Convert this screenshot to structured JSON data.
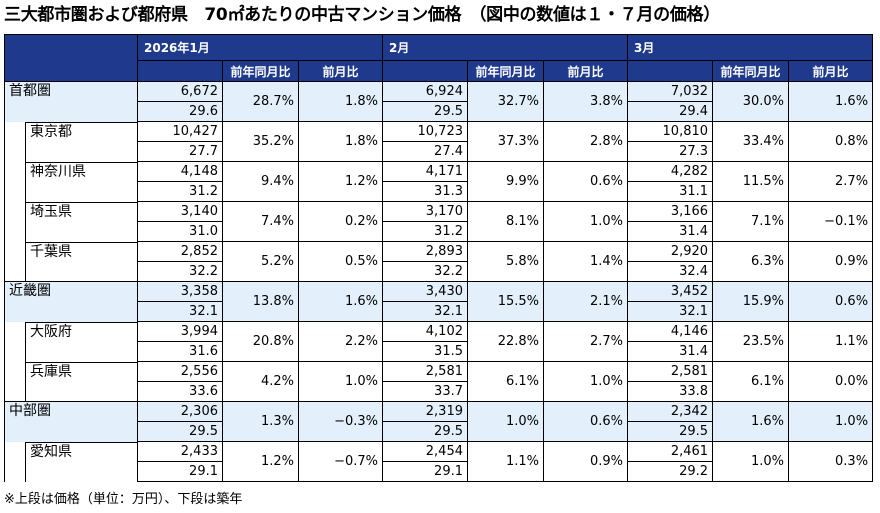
{
  "title": "三大都市圏および都府県　70㎡あたりの中古マンション価格　（図中の数値は１・７月の価格）",
  "header": {
    "months": [
      "2026年1月",
      "2月",
      "3月"
    ],
    "yoy_label": "前年同月比",
    "mom_label": "前月比"
  },
  "rows": [
    {
      "name": "首都圏",
      "type": "region",
      "cells": [
        {
          "price": "6,672",
          "age": "29.6",
          "yoy": "28.7%",
          "mom": "1.8%"
        },
        {
          "price": "6,924",
          "age": "29.5",
          "yoy": "32.7%",
          "mom": "3.8%"
        },
        {
          "price": "7,032",
          "age": "29.4",
          "yoy": "30.0%",
          "mom": "1.6%"
        }
      ]
    },
    {
      "name": "東京都",
      "type": "child",
      "cells": [
        {
          "price": "10,427",
          "age": "27.7",
          "yoy": "35.2%",
          "mom": "1.8%"
        },
        {
          "price": "10,723",
          "age": "27.4",
          "yoy": "37.3%",
          "mom": "2.8%"
        },
        {
          "price": "10,810",
          "age": "27.3",
          "yoy": "33.4%",
          "mom": "0.8%"
        }
      ]
    },
    {
      "name": "神奈川県",
      "type": "child",
      "cells": [
        {
          "price": "4,148",
          "age": "31.2",
          "yoy": "9.4%",
          "mom": "1.2%"
        },
        {
          "price": "4,171",
          "age": "31.3",
          "yoy": "9.9%",
          "mom": "0.6%"
        },
        {
          "price": "4,282",
          "age": "31.1",
          "yoy": "11.5%",
          "mom": "2.7%"
        }
      ]
    },
    {
      "name": "埼玉県",
      "type": "child",
      "cells": [
        {
          "price": "3,140",
          "age": "31.0",
          "yoy": "7.4%",
          "mom": "0.2%"
        },
        {
          "price": "3,170",
          "age": "31.2",
          "yoy": "8.1%",
          "mom": "1.0%"
        },
        {
          "price": "3,166",
          "age": "31.4",
          "yoy": "7.1%",
          "mom": "−0.1%"
        }
      ]
    },
    {
      "name": "千葉県",
      "type": "child",
      "cells": [
        {
          "price": "2,852",
          "age": "32.2",
          "yoy": "5.2%",
          "mom": "0.5%"
        },
        {
          "price": "2,893",
          "age": "32.2",
          "yoy": "5.8%",
          "mom": "1.4%"
        },
        {
          "price": "2,920",
          "age": "32.4",
          "yoy": "6.3%",
          "mom": "0.9%"
        }
      ]
    },
    {
      "name": "近畿圏",
      "type": "region",
      "cells": [
        {
          "price": "3,358",
          "age": "32.1",
          "yoy": "13.8%",
          "mom": "1.6%"
        },
        {
          "price": "3,430",
          "age": "32.1",
          "yoy": "15.5%",
          "mom": "2.1%"
        },
        {
          "price": "3,452",
          "age": "32.1",
          "yoy": "15.9%",
          "mom": "0.6%"
        }
      ]
    },
    {
      "name": "大阪府",
      "type": "child",
      "cells": [
        {
          "price": "3,994",
          "age": "31.6",
          "yoy": "20.8%",
          "mom": "2.2%"
        },
        {
          "price": "4,102",
          "age": "31.5",
          "yoy": "22.8%",
          "mom": "2.7%"
        },
        {
          "price": "4,146",
          "age": "31.4",
          "yoy": "23.5%",
          "mom": "1.1%"
        }
      ]
    },
    {
      "name": "兵庫県",
      "type": "child",
      "cells": [
        {
          "price": "2,556",
          "age": "33.6",
          "yoy": "4.2%",
          "mom": "1.0%"
        },
        {
          "price": "2,581",
          "age": "33.7",
          "yoy": "6.1%",
          "mom": "1.0%"
        },
        {
          "price": "2,581",
          "age": "33.8",
          "yoy": "6.1%",
          "mom": "0.0%"
        }
      ]
    },
    {
      "name": "中部圏",
      "type": "region",
      "cells": [
        {
          "price": "2,306",
          "age": "29.5",
          "yoy": "1.3%",
          "mom": "−0.3%"
        },
        {
          "price": "2,319",
          "age": "29.5",
          "yoy": "1.0%",
          "mom": "0.6%"
        },
        {
          "price": "2,342",
          "age": "29.5",
          "yoy": "1.6%",
          "mom": "1.0%"
        }
      ]
    },
    {
      "name": "愛知県",
      "type": "child",
      "cells": [
        {
          "price": "2,433",
          "age": "29.1",
          "yoy": "1.2%",
          "mom": "−0.7%"
        },
        {
          "price": "2,454",
          "age": "29.1",
          "yoy": "1.1%",
          "mom": "0.9%"
        },
        {
          "price": "2,461",
          "age": "29.2",
          "yoy": "1.0%",
          "mom": "0.3%"
        }
      ]
    }
  ],
  "footnote": "※上段は価格（単位：万円）、下段は築年",
  "colors": {
    "header_bg": "#1f3a8c",
    "region_bg": "#e3f0fb"
  }
}
